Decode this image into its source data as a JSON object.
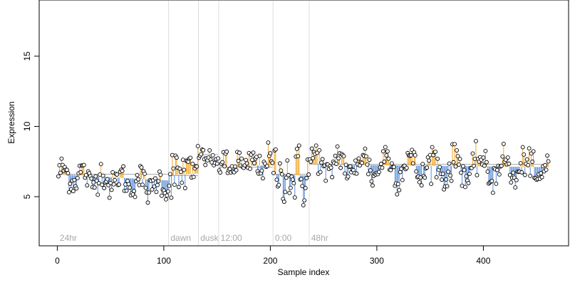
{
  "chart_data": {
    "type": "scatter",
    "xlabel": "Sample index",
    "ylabel": "Expression",
    "xlim": [
      -17,
      480
    ],
    "ylim": [
      1.5,
      19
    ],
    "x_ticks": [
      0,
      100,
      200,
      300,
      400
    ],
    "y_ticks": [
      5,
      10,
      15
    ],
    "grid": false,
    "colors": {
      "above": "#f5a623",
      "below": "#5b8fd8",
      "baseline": "#a8a8a8",
      "segment": "#dddddd",
      "point_stroke": "#000000",
      "point_fill": "#ffffff"
    },
    "segments": [
      {
        "label": "24hr",
        "x_start": 1,
        "x_end": 104,
        "baseline": 6.6,
        "amp": 0.5,
        "period": 18,
        "noise": 0.5,
        "trend": -0.9
      },
      {
        "label": "dawn",
        "x_start": 105,
        "x_end": 132,
        "baseline": 6.5,
        "amp": 0.3,
        "period": 12,
        "noise": 0.9,
        "trend": 0.3
      },
      {
        "label": "dusk",
        "x_start": 133,
        "x_end": 151,
        "baseline": 8.0,
        "amp": 0.35,
        "period": 8,
        "noise": 0.25,
        "trend": -0.6
      },
      {
        "label": "12:00",
        "x_start": 152,
        "x_end": 202,
        "baseline": 7.1,
        "amp": 0.4,
        "period": 14,
        "noise": 0.5,
        "trend": 0.3
      },
      {
        "label": "0:00",
        "x_start": 203,
        "x_end": 236,
        "baseline": 6.6,
        "amp": 0.5,
        "period": 10,
        "noise": 1.0,
        "trend": -0.2
      },
      {
        "label": "48hr",
        "x_start": 237,
        "x_end": 461,
        "baseline": 7.3,
        "amp": 0.8,
        "period": 22,
        "noise": 0.55,
        "trend": -0.4
      }
    ],
    "boundaries": [
      104,
      132,
      151,
      202,
      236
    ],
    "n_points": 461
  }
}
